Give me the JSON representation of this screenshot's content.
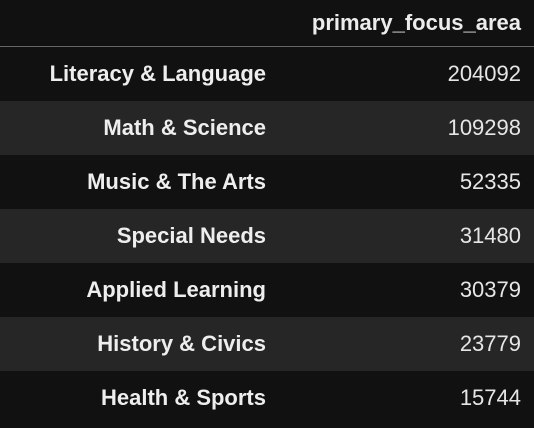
{
  "table": {
    "column_header": "primary_focus_area",
    "rows": [
      {
        "label": "Literacy & Language",
        "value": "204092"
      },
      {
        "label": "Math & Science",
        "value": "109298"
      },
      {
        "label": "Music & The Arts",
        "value": "52335"
      },
      {
        "label": "Special Needs",
        "value": "31480"
      },
      {
        "label": "Applied Learning",
        "value": "30379"
      },
      {
        "label": "History & Civics",
        "value": "23779"
      },
      {
        "label": "Health & Sports",
        "value": "15744"
      }
    ]
  },
  "colors": {
    "background": "#111111",
    "row_alt": "#262626",
    "text": "#e9e9e9",
    "rule": "#666666"
  }
}
